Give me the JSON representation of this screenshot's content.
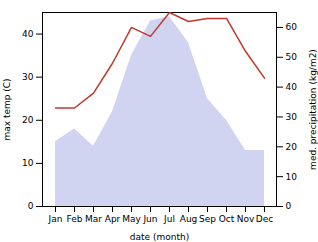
{
  "chart_data": {
    "type": "line",
    "categories": [
      "Jan",
      "Feb",
      "Mar",
      "Apr",
      "May",
      "Jun",
      "Jul",
      "Aug",
      "Sep",
      "Oct",
      "Nov",
      "Dec"
    ],
    "xlabel": "date (month)",
    "ylabel": "max temp (C)",
    "y2label": "med. precipitation (kg/m2)",
    "ylim": [
      0,
      45
    ],
    "yticks": [
      0,
      10,
      20,
      30,
      40
    ],
    "y2lim": [
      0,
      65
    ],
    "y2ticks": [
      0,
      10,
      20,
      30,
      40,
      50,
      60
    ],
    "grid": false,
    "series": [
      {
        "type": "area",
        "color": "#b0b8e8",
        "values": [
          15,
          18,
          14,
          22,
          35,
          43,
          44,
          38,
          25,
          20,
          13,
          13
        ]
      },
      {
        "type": "line",
        "color": "#c0392b",
        "axis": "y2",
        "values": [
          33,
          33,
          38,
          48,
          60,
          57,
          65,
          62,
          63,
          63,
          52,
          43
        ]
      }
    ]
  }
}
